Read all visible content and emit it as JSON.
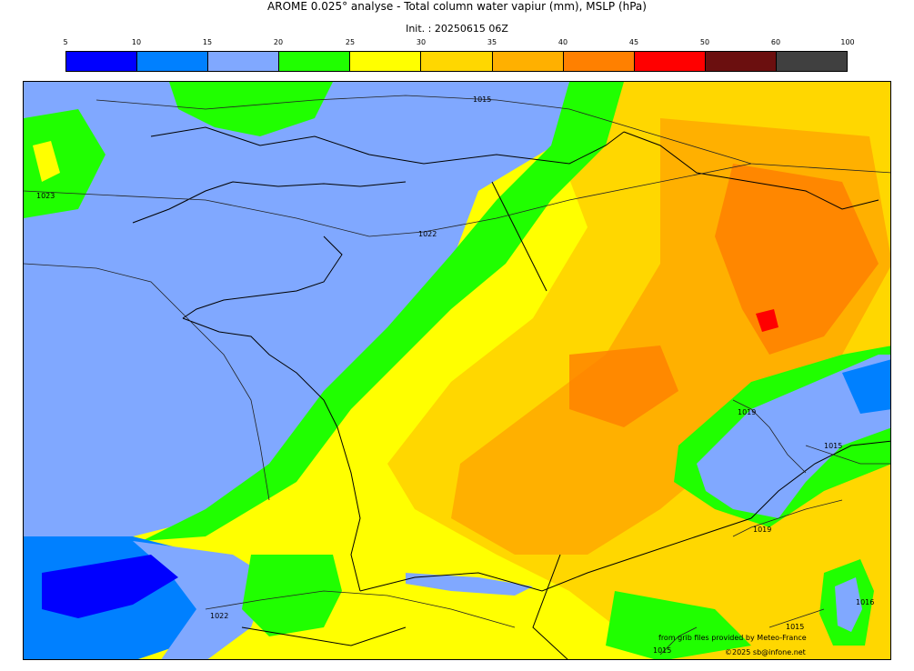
{
  "title": "AROME 0.025° analyse - Total column water vapiur (mm), MSLP (hPa)",
  "subtitle": "Init. : 20250615 06Z",
  "legend": {
    "ticks": [
      "5",
      "10",
      "15",
      "20",
      "25",
      "30",
      "35",
      "40",
      "45",
      "50",
      "60",
      "100"
    ],
    "colors": [
      "#0000ff",
      "#0080ff",
      "#80a8ff",
      "#20ff00",
      "#ffff00",
      "#ffd700",
      "#ffb000",
      "#ff8000",
      "#ff0000",
      "#6b0f0f",
      "#404040"
    ]
  },
  "isobars": [
    {
      "label": "1015"
    },
    {
      "label": "1023"
    },
    {
      "label": "1022"
    },
    {
      "label": "1022"
    },
    {
      "label": "1019"
    },
    {
      "label": "1015"
    },
    {
      "label": "1019"
    },
    {
      "label": "1016"
    },
    {
      "label": "1015"
    },
    {
      "label": "1015"
    }
  ],
  "credits": {
    "line1": "from grib files provided by Meteo-France",
    "line2": "©2025 sb@infone.net"
  }
}
